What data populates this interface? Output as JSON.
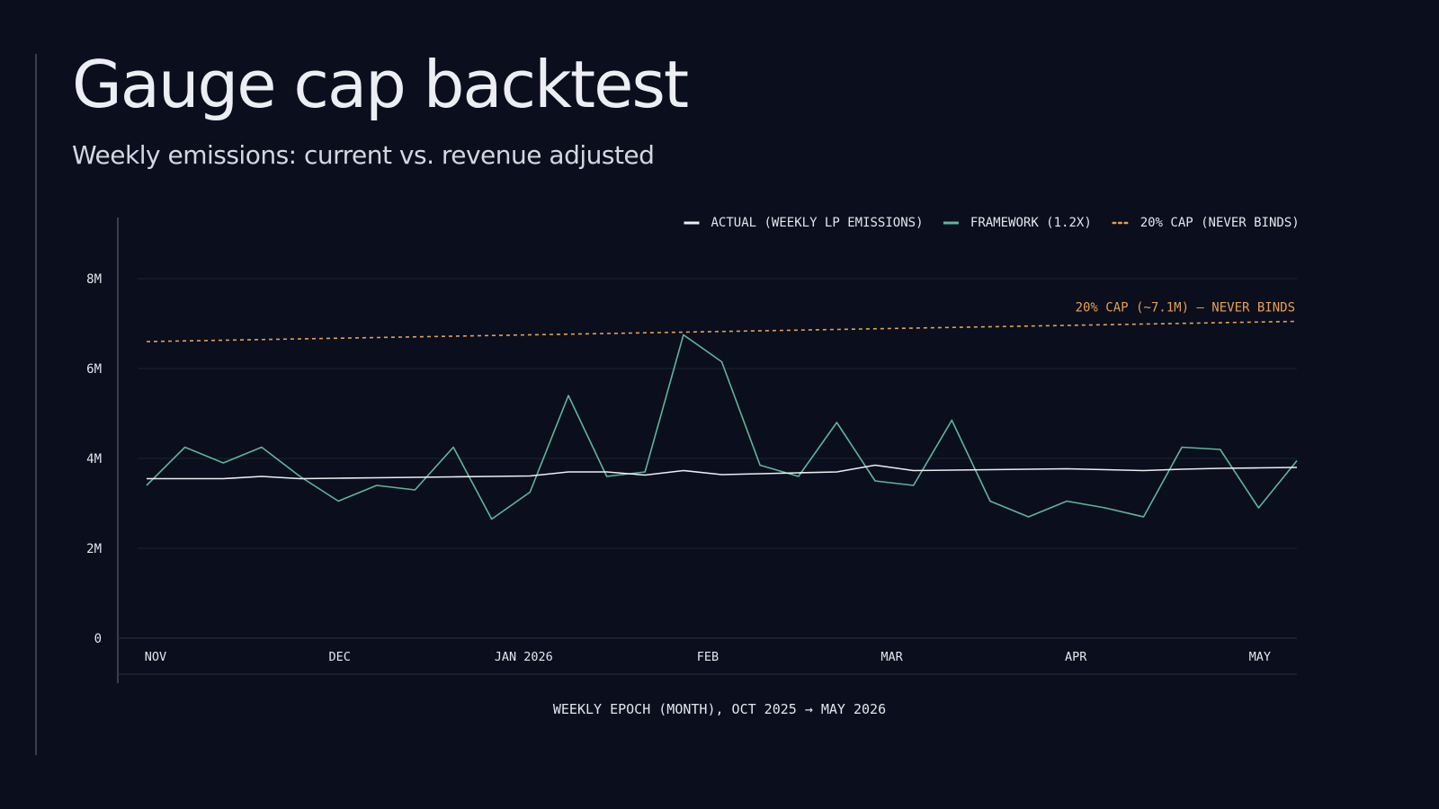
{
  "slide": {
    "title": "Gauge cap backtest",
    "subtitle": "Weekly emissions: current vs. revenue adjusted"
  },
  "colors": {
    "background": "#0a0e1d",
    "actual": "#eceef3",
    "framework": "#5fb59a",
    "cap": "#e6a055",
    "grid": "#1f2433",
    "axis_text": "#e4e6ec"
  },
  "chart_data": {
    "type": "line",
    "xlabel": "WEEKLY EPOCH (MONTH), OCT 2025 → MAY 2026",
    "ylabel": "",
    "ylim": [
      0,
      8
    ],
    "y_ticks": [
      {
        "value": 0,
        "label": "0"
      },
      {
        "value": 2,
        "label": "2M"
      },
      {
        "value": 4,
        "label": "4M"
      },
      {
        "value": 6,
        "label": "6M"
      },
      {
        "value": 8,
        "label": "8M"
      }
    ],
    "x_ticks": [
      {
        "week": 0,
        "label": "NOV"
      },
      {
        "week": 4.8,
        "label": "DEC"
      },
      {
        "week": 9.6,
        "label": "JAN 2026"
      },
      {
        "week": 14.4,
        "label": "FEB"
      },
      {
        "week": 19.2,
        "label": "MAR"
      },
      {
        "week": 24,
        "label": "APR"
      },
      {
        "week": 28.8,
        "label": "MAY"
      }
    ],
    "x_range": [
      0,
      30
    ],
    "legend_position": "top-right",
    "grid": true,
    "series": [
      {
        "name": "ACTUAL (WEEKLY LP EMISSIONS)",
        "style": "solid",
        "color": "#eceef3",
        "x": [
          0,
          1,
          2,
          3,
          4,
          5,
          6,
          7,
          8,
          9,
          10,
          11,
          12,
          13,
          14,
          15,
          16,
          17,
          18,
          19,
          20,
          21,
          22,
          23,
          24,
          25,
          26,
          27,
          28,
          29,
          30
        ],
        "values": [
          3.55,
          3.55,
          3.55,
          3.6,
          3.55,
          3.56,
          3.57,
          3.58,
          3.59,
          3.6,
          3.61,
          3.7,
          3.7,
          3.63,
          3.73,
          3.64,
          3.66,
          3.68,
          3.7,
          3.85,
          3.73,
          3.74,
          3.75,
          3.76,
          3.77,
          3.75,
          3.73,
          3.76,
          3.78,
          3.79,
          3.8
        ]
      },
      {
        "name": "FRAMEWORK (1.2X)",
        "style": "solid",
        "color": "#5fb59a",
        "x": [
          0,
          1,
          2,
          3,
          4,
          5,
          6,
          7,
          8,
          9,
          10,
          11,
          12,
          13,
          14,
          15,
          16,
          17,
          18,
          19,
          20,
          21,
          22,
          23,
          24,
          25,
          26,
          27,
          28,
          29,
          30
        ],
        "values": [
          3.4,
          4.25,
          3.9,
          4.25,
          3.6,
          3.05,
          3.4,
          3.3,
          4.25,
          2.65,
          3.25,
          5.4,
          3.6,
          3.7,
          6.75,
          6.15,
          3.85,
          3.6,
          4.8,
          3.5,
          3.4,
          4.85,
          3.05,
          2.7,
          3.05,
          2.9,
          2.7,
          4.25,
          4.2,
          2.9,
          3.95
        ]
      },
      {
        "name": "20% CAP (NEVER BINDS)",
        "style": "dashed",
        "color": "#e6a055",
        "x": [
          0,
          30
        ],
        "values": [
          6.6,
          7.05
        ]
      }
    ],
    "annotations": [
      {
        "text": "20% CAP (~7.1M) — NEVER BINDS",
        "week": 30,
        "value": 7.35,
        "anchor": "end"
      }
    ]
  }
}
